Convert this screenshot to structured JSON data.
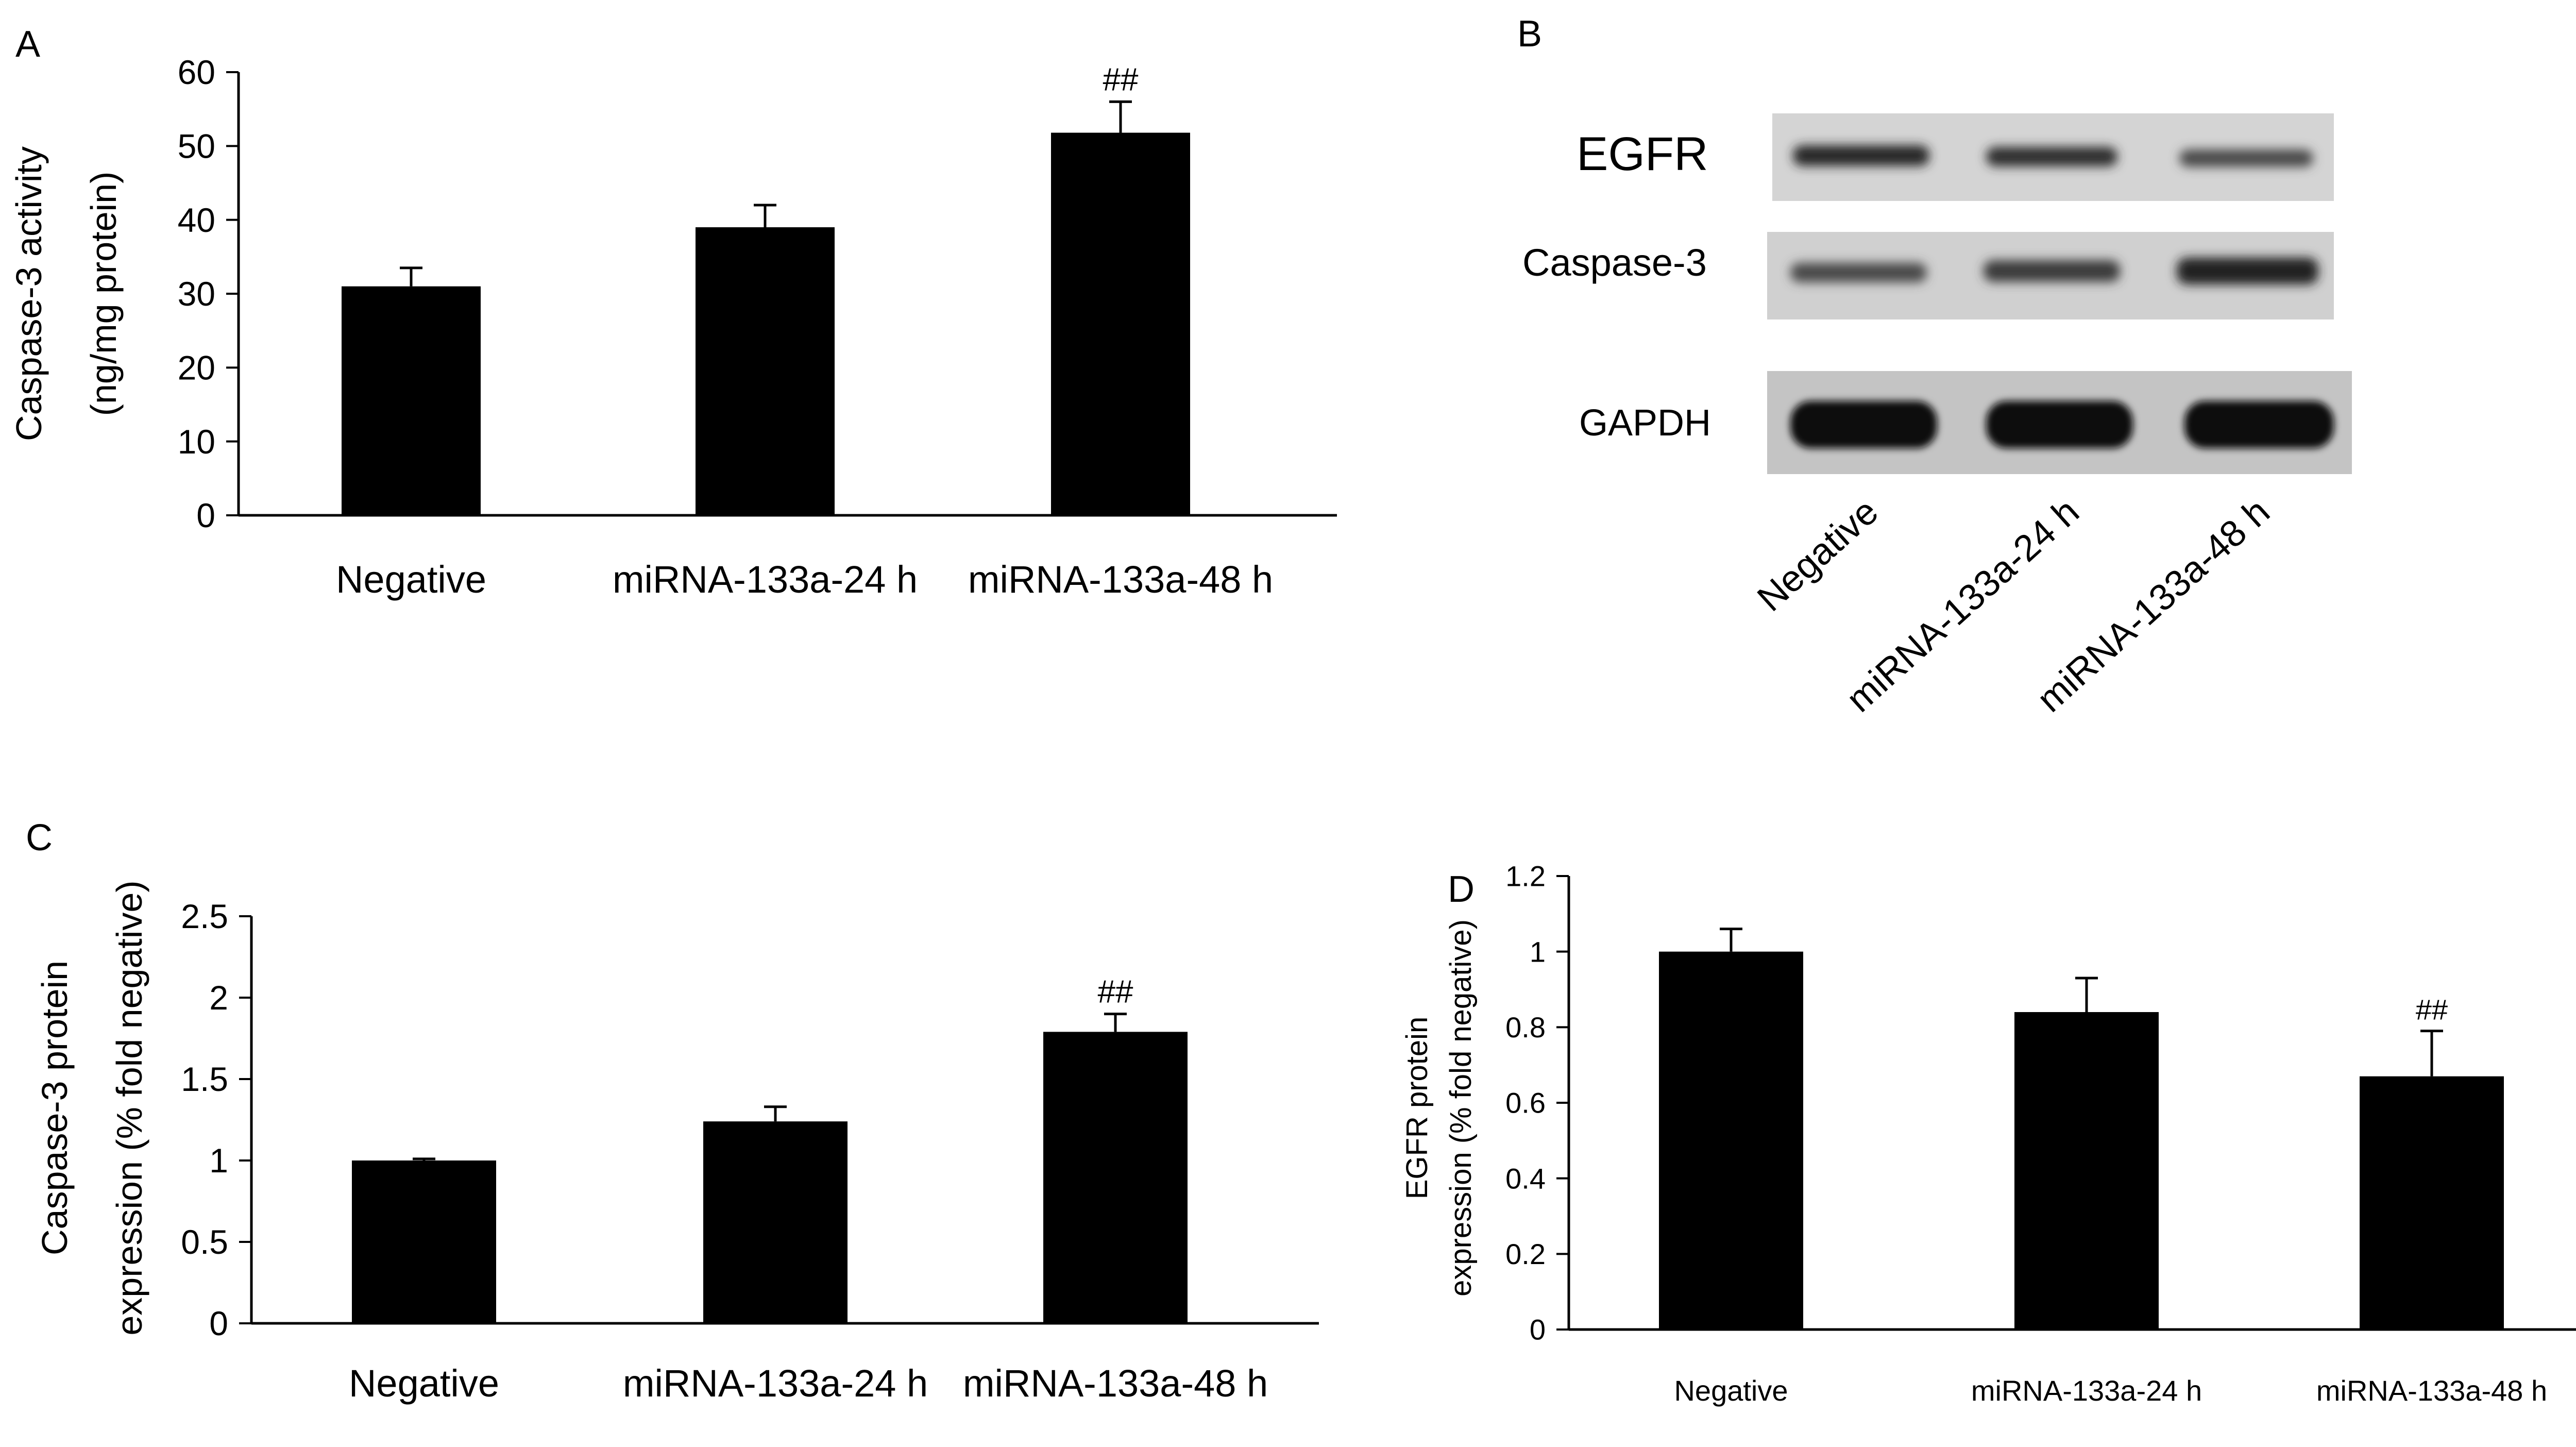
{
  "chart_data": [
    {
      "type": "bar",
      "panel": "A",
      "categories": [
        "Negative",
        "miRNA-133a-24 h",
        "miRNA-133a-48 h"
      ],
      "values": [
        31,
        39,
        51.8
      ],
      "errors": [
        2.5,
        3,
        4.2
      ],
      "annotations": [
        "",
        "",
        "##"
      ],
      "ylabel_lines": [
        "Caspase-3 activity",
        "(ng/mg protein)"
      ],
      "ylim": [
        0,
        60
      ],
      "yticks": [
        0,
        10,
        20,
        30,
        40,
        50,
        60
      ],
      "ytick_labels": [
        "0",
        "10",
        "20",
        "30",
        "40",
        "50",
        "60"
      ],
      "color": "#000000"
    },
    {
      "type": "bar",
      "panel": "C",
      "categories": [
        "Negative",
        "miRNA-133a-24 h",
        "miRNA-133a-48 h"
      ],
      "values": [
        1.0,
        1.24,
        1.79
      ],
      "errors": [
        0.01,
        0.09,
        0.11
      ],
      "annotations": [
        "",
        "",
        "##"
      ],
      "ylabel_lines": [
        "Caspase-3 protein",
        "expression (% fold negative)"
      ],
      "ylim": [
        0,
        2.5
      ],
      "yticks": [
        0,
        0.5,
        1,
        1.5,
        2,
        2.5
      ],
      "ytick_labels": [
        "0",
        "0.5",
        "1",
        "1.5",
        "2",
        "2.5"
      ],
      "color": "#000000"
    },
    {
      "type": "bar",
      "panel": "D",
      "categories": [
        "Negative",
        "miRNA-133a-24 h",
        "miRNA-133a-48 h"
      ],
      "values": [
        1.0,
        0.84,
        0.67
      ],
      "errors": [
        0.06,
        0.09,
        0.12
      ],
      "annotations": [
        "",
        "",
        "##"
      ],
      "ylabel_lines": [
        "EGFR protein",
        "expression (% fold negative)"
      ],
      "ylim": [
        0,
        1.2
      ],
      "yticks": [
        0,
        0.2,
        0.4,
        0.6,
        0.8,
        1,
        1.2
      ],
      "ytick_labels": [
        "0",
        "0.2",
        "0.4",
        "0.6",
        "0.8",
        "1",
        "1.2"
      ],
      "color": "#000000"
    }
  ],
  "panel_b": {
    "letter": "B",
    "proteins": [
      "EGFR",
      "Caspase-3",
      "GAPDH"
    ],
    "lanes": [
      "Negative",
      "miRNA-133a-24 h",
      "miRNA-133a-48 h"
    ]
  },
  "panel_letters": {
    "a": "A",
    "b": "B",
    "c": "C",
    "d": "D"
  }
}
